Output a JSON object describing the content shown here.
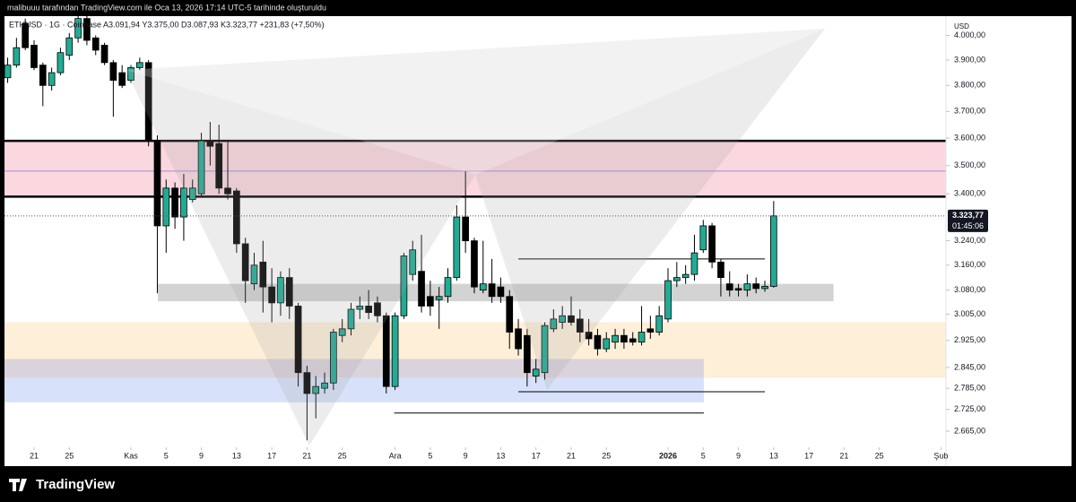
{
  "chart_data": {
    "type": "candlestick",
    "header": "malibuuu tarafından TradingView.com ile Oca 13, 2026 17:14 UTC-5 tarihinde oluşturuldu",
    "legend": "ETHUSD · 1G · Coinbase  A3.091,94  Y3.375,00  D3.087,93  K3.323,77  +231,83 (+7,50%)",
    "currency": "USD",
    "last_label": "3.323,77",
    "countdown": "01:45:06",
    "brand": "TradingView",
    "log_scale": true,
    "up_color": "#22ab94",
    "down_color": "#000000",
    "ylim": [
      2626,
      4080
    ],
    "xlim": [
      -0.36,
      106.57
    ],
    "yticks": [
      {
        "value": 4000,
        "label": "4.000,00"
      },
      {
        "value": 3900,
        "label": "3.900,00"
      },
      {
        "value": 3800,
        "label": "3.800,00"
      },
      {
        "value": 3700,
        "label": "3.700,00"
      },
      {
        "value": 3600,
        "label": "3.600,00"
      },
      {
        "value": 3500,
        "label": "3.500,00"
      },
      {
        "value": 3400,
        "label": "3.400,00"
      },
      {
        "value": 3240,
        "label": "3.240,00"
      },
      {
        "value": 3160,
        "label": "3.160,00"
      },
      {
        "value": 3080,
        "label": "3.080,00"
      },
      {
        "value": 3005,
        "label": "3.005,00"
      },
      {
        "value": 2925,
        "label": "2.925,00"
      },
      {
        "value": 2845,
        "label": "2.845,00"
      },
      {
        "value": 2785,
        "label": "2.785,00"
      },
      {
        "value": 2725,
        "label": "2.725,00"
      },
      {
        "value": 2665,
        "label": "2.665,00"
      }
    ],
    "xticks": [
      {
        "value": 3,
        "label": "21"
      },
      {
        "value": 7,
        "label": "25"
      },
      {
        "value": 14,
        "label": "Kas"
      },
      {
        "value": 18,
        "label": "5"
      },
      {
        "value": 22,
        "label": "9"
      },
      {
        "value": 26,
        "label": "13"
      },
      {
        "value": 30,
        "label": "17"
      },
      {
        "value": 34,
        "label": "21"
      },
      {
        "value": 38,
        "label": "25"
      },
      {
        "value": 44,
        "label": "Ara"
      },
      {
        "value": 48,
        "label": "5"
      },
      {
        "value": 52,
        "label": "9"
      },
      {
        "value": 56,
        "label": "13"
      },
      {
        "value": 60,
        "label": "17"
      },
      {
        "value": 64,
        "label": "21"
      },
      {
        "value": 68,
        "label": "25"
      },
      {
        "value": 75,
        "label": "2026"
      },
      {
        "value": 79,
        "label": "5"
      },
      {
        "value": 83,
        "label": "9"
      },
      {
        "value": 87,
        "label": "13"
      },
      {
        "value": 91,
        "label": "17"
      },
      {
        "value": 95,
        "label": "21"
      },
      {
        "value": 99,
        "label": "25"
      },
      {
        "value": 106,
        "label": "Şub"
      }
    ],
    "zones": [
      {
        "x0": -0.36,
        "x1": 106.57,
        "low": 3390,
        "high": 3590,
        "color": "#f9c9d4"
      },
      {
        "x0": 17.06,
        "x1": 93.8,
        "low": 3045,
        "high": 3100,
        "color": "#c4c4c4"
      },
      {
        "x0": -0.36,
        "x1": 106.57,
        "low": 2815,
        "high": 2980,
        "color": "#fde9cc"
      },
      {
        "x0": -0.36,
        "x1": 79.07,
        "low": 2815,
        "high": 2870,
        "color": "#cfc9dc"
      },
      {
        "x0": -0.36,
        "x1": 79.07,
        "low": 2745,
        "high": 2815,
        "color": "#c9d8f8"
      }
    ],
    "levels": [
      {
        "x0": -0.36,
        "x1": 106.57,
        "price": 3590,
        "color": "#000000",
        "width": 2.5
      },
      {
        "x0": -0.36,
        "x1": 106.57,
        "price": 3390,
        "color": "#000000",
        "width": 2.5
      },
      {
        "x0": -0.36,
        "x1": 106.57,
        "price": 3480,
        "color": "#9c8fd0",
        "width": 1
      },
      {
        "x0": 58,
        "x1": 86,
        "price": 3180,
        "color": "#000000",
        "width": 1
      },
      {
        "x0": 58,
        "x1": 86,
        "price": 2775,
        "color": "#000000",
        "width": 1
      },
      {
        "x0": 43.9,
        "x1": 79.07,
        "price": 2715,
        "color": "#000000",
        "width": 1
      }
    ],
    "candles": [
      {
        "o": 3830,
        "h": 3910,
        "l": 3810,
        "c": 3880
      },
      {
        "o": 3880,
        "h": 3990,
        "l": 3870,
        "c": 3950
      },
      {
        "o": 4050,
        "h": 4070,
        "l": 3940,
        "c": 3950
      },
      {
        "o": 3960,
        "h": 3980,
        "l": 3860,
        "c": 3870
      },
      {
        "o": 3880,
        "h": 3890,
        "l": 3720,
        "c": 3800
      },
      {
        "o": 3800,
        "h": 3870,
        "l": 3780,
        "c": 3850
      },
      {
        "o": 3850,
        "h": 3950,
        "l": 3840,
        "c": 3930
      },
      {
        "o": 3920,
        "h": 4010,
        "l": 3900,
        "c": 3990
      },
      {
        "o": 3990,
        "h": 4080,
        "l": 3970,
        "c": 4070
      },
      {
        "o": 4070,
        "h": 4080,
        "l": 3960,
        "c": 3980
      },
      {
        "o": 3990,
        "h": 4000,
        "l": 3920,
        "c": 3940
      },
      {
        "o": 3960,
        "h": 3970,
        "l": 3880,
        "c": 3890
      },
      {
        "o": 3890,
        "h": 3900,
        "l": 3680,
        "c": 3820
      },
      {
        "o": 3850,
        "h": 3880,
        "l": 3790,
        "c": 3800
      },
      {
        "o": 3820,
        "h": 3880,
        "l": 3810,
        "c": 3870
      },
      {
        "o": 3870,
        "h": 3910,
        "l": 3860,
        "c": 3890
      },
      {
        "o": 3890,
        "h": 3900,
        "l": 3570,
        "c": 3590
      },
      {
        "o": 3590,
        "h": 3610,
        "l": 3070,
        "c": 3290
      },
      {
        "o": 3290,
        "h": 3450,
        "l": 3200,
        "c": 3420
      },
      {
        "o": 3420,
        "h": 3440,
        "l": 3280,
        "c": 3320
      },
      {
        "o": 3320,
        "h": 3470,
        "l": 3240,
        "c": 3420
      },
      {
        "o": 3380,
        "h": 3450,
        "l": 3370,
        "c": 3420
      },
      {
        "o": 3400,
        "h": 3620,
        "l": 3390,
        "c": 3590
      },
      {
        "o": 3590,
        "h": 3660,
        "l": 3500,
        "c": 3570
      },
      {
        "o": 3580,
        "h": 3650,
        "l": 3400,
        "c": 3420
      },
      {
        "o": 3420,
        "h": 3590,
        "l": 3380,
        "c": 3400
      },
      {
        "o": 3410,
        "h": 3420,
        "l": 3200,
        "c": 3230
      },
      {
        "o": 3230,
        "h": 3250,
        "l": 3040,
        "c": 3110
      },
      {
        "o": 3100,
        "h": 3200,
        "l": 3080,
        "c": 3160
      },
      {
        "o": 3170,
        "h": 3240,
        "l": 3010,
        "c": 3090
      },
      {
        "o": 3090,
        "h": 3150,
        "l": 2980,
        "c": 3040
      },
      {
        "o": 3040,
        "h": 3140,
        "l": 3000,
        "c": 3120
      },
      {
        "o": 3120,
        "h": 3150,
        "l": 2990,
        "c": 3030
      },
      {
        "o": 3030,
        "h": 3040,
        "l": 2790,
        "c": 2830
      },
      {
        "o": 2830,
        "h": 2850,
        "l": 2640,
        "c": 2770
      },
      {
        "o": 2770,
        "h": 2820,
        "l": 2700,
        "c": 2790
      },
      {
        "o": 2785,
        "h": 2830,
        "l": 2770,
        "c": 2800
      },
      {
        "o": 2800,
        "h": 2960,
        "l": 2780,
        "c": 2950
      },
      {
        "o": 2940,
        "h": 2990,
        "l": 2920,
        "c": 2960
      },
      {
        "o": 2960,
        "h": 3040,
        "l": 2940,
        "c": 3020
      },
      {
        "o": 3020,
        "h": 3060,
        "l": 2990,
        "c": 3030
      },
      {
        "o": 3030,
        "h": 3080,
        "l": 2990,
        "c": 3010
      },
      {
        "o": 3040,
        "h": 3060,
        "l": 2980,
        "c": 3000
      },
      {
        "o": 3000,
        "h": 3010,
        "l": 2770,
        "c": 2790
      },
      {
        "o": 2790,
        "h": 3010,
        "l": 2780,
        "c": 3000
      },
      {
        "o": 3000,
        "h": 3200,
        "l": 2990,
        "c": 3190
      },
      {
        "o": 3130,
        "h": 3240,
        "l": 3110,
        "c": 3210
      },
      {
        "o": 3140,
        "h": 3260,
        "l": 3010,
        "c": 3030
      },
      {
        "o": 3060,
        "h": 3110,
        "l": 3000,
        "c": 3030
      },
      {
        "o": 3050,
        "h": 3090,
        "l": 2960,
        "c": 3060
      },
      {
        "o": 3060,
        "h": 3150,
        "l": 3040,
        "c": 3120
      },
      {
        "o": 3120,
        "h": 3360,
        "l": 3110,
        "c": 3320
      },
      {
        "o": 3320,
        "h": 3480,
        "l": 3200,
        "c": 3240
      },
      {
        "o": 3240,
        "h": 3250,
        "l": 3070,
        "c": 3090
      },
      {
        "o": 3080,
        "h": 3240,
        "l": 3070,
        "c": 3100
      },
      {
        "o": 3100,
        "h": 3180,
        "l": 3040,
        "c": 3060
      },
      {
        "o": 3090,
        "h": 3120,
        "l": 3040,
        "c": 3060
      },
      {
        "o": 3060,
        "h": 3080,
        "l": 2900,
        "c": 2950
      },
      {
        "o": 2960,
        "h": 2990,
        "l": 2880,
        "c": 2900
      },
      {
        "o": 2940,
        "h": 2960,
        "l": 2790,
        "c": 2830
      },
      {
        "o": 2820,
        "h": 2870,
        "l": 2800,
        "c": 2840
      },
      {
        "o": 2830,
        "h": 2980,
        "l": 2810,
        "c": 2970
      },
      {
        "o": 2960,
        "h": 3020,
        "l": 2950,
        "c": 2990
      },
      {
        "o": 2980,
        "h": 3030,
        "l": 2960,
        "c": 3000
      },
      {
        "o": 3000,
        "h": 3060,
        "l": 2970,
        "c": 2980
      },
      {
        "o": 2990,
        "h": 3020,
        "l": 2920,
        "c": 2950
      },
      {
        "o": 2950,
        "h": 2990,
        "l": 2910,
        "c": 2930
      },
      {
        "o": 2940,
        "h": 2960,
        "l": 2880,
        "c": 2900
      },
      {
        "o": 2900,
        "h": 2950,
        "l": 2890,
        "c": 2930
      },
      {
        "o": 2920,
        "h": 2960,
        "l": 2900,
        "c": 2940
      },
      {
        "o": 2940,
        "h": 2960,
        "l": 2900,
        "c": 2920
      },
      {
        "o": 2930,
        "h": 2950,
        "l": 2910,
        "c": 2920
      },
      {
        "o": 2920,
        "h": 3030,
        "l": 2910,
        "c": 2950
      },
      {
        "o": 2960,
        "h": 3000,
        "l": 2930,
        "c": 2950
      },
      {
        "o": 2950,
        "h": 3030,
        "l": 2940,
        "c": 3000
      },
      {
        "o": 2990,
        "h": 3150,
        "l": 2980,
        "c": 3110
      },
      {
        "o": 3110,
        "h": 3170,
        "l": 3090,
        "c": 3120
      },
      {
        "o": 3120,
        "h": 3160,
        "l": 3100,
        "c": 3130
      },
      {
        "o": 3130,
        "h": 3260,
        "l": 3110,
        "c": 3200
      },
      {
        "o": 3210,
        "h": 3310,
        "l": 3200,
        "c": 3290
      },
      {
        "o": 3290,
        "h": 3300,
        "l": 3150,
        "c": 3170
      },
      {
        "o": 3170,
        "h": 3180,
        "l": 3060,
        "c": 3120
      },
      {
        "o": 3100,
        "h": 3140,
        "l": 3060,
        "c": 3080
      },
      {
        "o": 3085,
        "h": 3100,
        "l": 3060,
        "c": 3080
      },
      {
        "o": 3080,
        "h": 3130,
        "l": 3060,
        "c": 3100
      },
      {
        "o": 3100,
        "h": 3120,
        "l": 3070,
        "c": 3085
      },
      {
        "o": 3085,
        "h": 3110,
        "l": 3075,
        "c": 3092
      },
      {
        "o": 3091.94,
        "h": 3375,
        "l": 3087.93,
        "c": 3323.77
      }
    ]
  }
}
